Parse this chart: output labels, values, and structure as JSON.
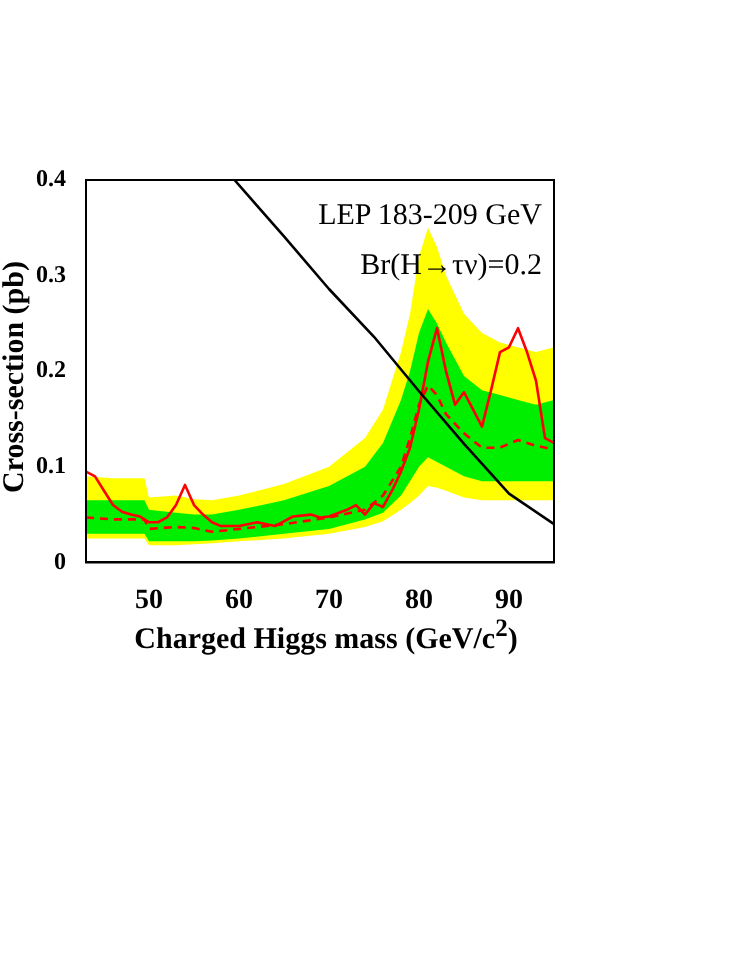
{
  "chart_data": {
    "type": "line",
    "xlabel": "Charged Higgs mass (GeV/c$^{2}$)",
    "ylabel": "Cross-section (pb)",
    "xlim": [
      43,
      95
    ],
    "xticks": [
      50,
      60,
      70,
      80,
      90
    ],
    "ylim": [
      0,
      0.4
    ],
    "yticks": [
      0,
      0.1,
      0.2,
      0.3,
      0.4
    ],
    "grid": false,
    "legend": false,
    "marker": "none",
    "annotations": [
      "LEP 183-209 GeV",
      "Br(H→τν)=0.2"
    ],
    "series": [
      {
        "color": "#ffff00",
        "x": [
          43,
          46,
          49.5,
          50,
          53,
          55,
          57,
          60,
          65,
          70,
          74,
          76,
          78,
          79,
          80,
          81,
          82,
          83,
          85,
          87,
          89,
          91,
          93,
          95
        ],
        "values": [
          null,
          null,
          null,
          null,
          null,
          null,
          null,
          null,
          null,
          null,
          null,
          null,
          null,
          null,
          null,
          null,
          null,
          null,
          null,
          null,
          null,
          null,
          null,
          null
        ],
        "upper": [
          0.09,
          0.088,
          0.088,
          0.068,
          0.07,
          0.066,
          0.065,
          0.07,
          0.082,
          0.1,
          0.13,
          0.16,
          0.22,
          0.26,
          0.32,
          0.35,
          0.33,
          0.3,
          0.26,
          0.24,
          0.23,
          0.225,
          0.22,
          0.225
        ],
        "lower": [
          0.025,
          0.025,
          0.025,
          0.018,
          0.018,
          0.019,
          0.02,
          0.022,
          0.025,
          0.03,
          0.037,
          0.043,
          0.055,
          0.062,
          0.07,
          0.08,
          0.078,
          0.075,
          0.068,
          0.065,
          0.065,
          0.065,
          0.065,
          0.065
        ]
      },
      {
        "color": "#00ee00",
        "x": [
          43,
          46,
          49.5,
          50,
          53,
          55,
          57,
          60,
          65,
          70,
          74,
          76,
          78,
          79,
          80,
          81,
          82,
          83,
          85,
          87,
          89,
          91,
          93,
          95
        ],
        "values": [
          null,
          null,
          null,
          null,
          null,
          null,
          null,
          null,
          null,
          null,
          null,
          null,
          null,
          null,
          null,
          null,
          null,
          null,
          null,
          null,
          null,
          null,
          null,
          null
        ],
        "upper": [
          0.065,
          0.065,
          0.065,
          0.055,
          0.052,
          0.05,
          0.05,
          0.055,
          0.065,
          0.08,
          0.1,
          0.125,
          0.17,
          0.2,
          0.24,
          0.265,
          0.25,
          0.23,
          0.195,
          0.18,
          0.175,
          0.17,
          0.165,
          0.17
        ],
        "lower": [
          0.03,
          0.03,
          0.03,
          0.022,
          0.022,
          0.022,
          0.023,
          0.025,
          0.03,
          0.035,
          0.045,
          0.052,
          0.07,
          0.085,
          0.1,
          0.11,
          0.105,
          0.1,
          0.09,
          0.085,
          0.085,
          0.085,
          0.085,
          0.085
        ]
      },
      {
        "type": "line",
        "color": "#ff0000",
        "line_style": "dashed",
        "x": [
          43,
          46,
          49.5,
          50,
          53,
          55,
          57,
          60,
          65,
          70,
          74,
          76,
          78,
          79,
          80,
          81,
          82,
          83,
          85,
          87,
          89,
          91,
          93,
          95
        ],
        "values": [
          0.047,
          0.045,
          0.045,
          0.035,
          0.037,
          0.036,
          0.032,
          0.035,
          0.04,
          0.047,
          0.055,
          0.07,
          0.1,
          0.13,
          0.165,
          0.185,
          0.175,
          0.155,
          0.135,
          0.12,
          0.12,
          0.128,
          0.122,
          0.118
        ]
      },
      {
        "type": "line",
        "color": "#ff0000",
        "line_style": "solid",
        "x": [
          43,
          44,
          45,
          46,
          47,
          48,
          49,
          50,
          51,
          52,
          53,
          54,
          55,
          56,
          57,
          58,
          60,
          62,
          64,
          66,
          68,
          69,
          70,
          72,
          73,
          74,
          75,
          76,
          77,
          78,
          79,
          80,
          81,
          82,
          83,
          84,
          85,
          86,
          87,
          88,
          89,
          90,
          91,
          92,
          93,
          94,
          95
        ],
        "values": [
          0.095,
          0.09,
          0.075,
          0.06,
          0.053,
          0.05,
          0.048,
          0.042,
          0.042,
          0.047,
          0.06,
          0.081,
          0.06,
          0.05,
          0.042,
          0.038,
          0.038,
          0.042,
          0.038,
          0.048,
          0.05,
          0.047,
          0.048,
          0.055,
          0.06,
          0.05,
          0.062,
          0.058,
          0.075,
          0.095,
          0.12,
          0.16,
          0.21,
          0.245,
          0.2,
          0.165,
          0.178,
          0.16,
          0.142,
          0.18,
          0.22,
          0.225,
          0.245,
          0.22,
          0.19,
          0.13,
          0.125
        ]
      },
      {
        "type": "line",
        "color": "#000000",
        "line_style": "solid",
        "x": [
          59.5,
          65,
          70,
          75,
          80,
          85,
          90,
          95
        ],
        "values": [
          0.4,
          0.341,
          0.286,
          0.236,
          0.179,
          0.124,
          0.072,
          0.04
        ]
      }
    ]
  }
}
